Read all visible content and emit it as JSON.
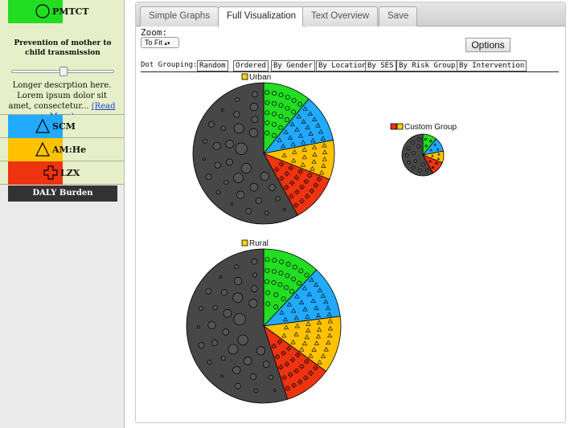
{
  "sidebar": {
    "interventions": [
      {
        "key": "pmtct",
        "label": "PMTCT",
        "color": "#22dd22",
        "icon": "circle-icon"
      },
      {
        "key": "scm",
        "label": "SCM",
        "color": "#22aaff",
        "icon": "triangle-icon"
      },
      {
        "key": "amhe",
        "label": "AM:He",
        "color": "#ffc200",
        "icon": "triangle-icon"
      },
      {
        "key": "lzx",
        "label": "LZX",
        "color": "#ee3311",
        "icon": "cross-icon"
      }
    ],
    "pmtct_title": "Prevention of mother to child transmission",
    "pmtct_long": "Longer descrption here. Lorem ipsum dolor sit amet, consectetur...",
    "read_more": "(Read More)",
    "daly_label": "DALY Burden",
    "slider_value": 0.5
  },
  "tabs": [
    {
      "label": "Simple Graphs",
      "active": false
    },
    {
      "label": "Full Visualization",
      "active": true
    },
    {
      "label": "Text Overview",
      "active": false
    },
    {
      "label": "Save",
      "active": false
    }
  ],
  "zoom": {
    "label": "Zoom:",
    "value": "To Fit"
  },
  "options_label": "Options",
  "grouping": {
    "label": "Dot Grouping:",
    "options": [
      "Random",
      "Ordered",
      "By Gender",
      "By Location",
      "By SES",
      "By Risk Group",
      "By Intervention"
    ],
    "selected": "By Location"
  },
  "chart_data": {
    "type": "pie",
    "groups": [
      {
        "name": "Urban",
        "size": "large",
        "segments": [
          {
            "intervention": "PMTCT",
            "value": 11
          },
          {
            "intervention": "SCM",
            "value": 11
          },
          {
            "intervention": "AM:He",
            "value": 9
          },
          {
            "intervention": "LZX",
            "value": 11
          },
          {
            "intervention": "DALY Burden",
            "value": 58
          }
        ]
      },
      {
        "name": "Custom Group",
        "size": "small",
        "segments": [
          {
            "intervention": "PMTCT",
            "value": 11
          },
          {
            "intervention": "SCM",
            "value": 11
          },
          {
            "intervention": "AM:He",
            "value": 9
          },
          {
            "intervention": "LZX",
            "value": 11
          },
          {
            "intervention": "DALY Burden",
            "value": 58
          }
        ]
      },
      {
        "name": "Rural",
        "size": "large",
        "segments": [
          {
            "intervention": "PMTCT",
            "value": 12
          },
          {
            "intervention": "SCM",
            "value": 11
          },
          {
            "intervention": "AM:He",
            "value": 12
          },
          {
            "intervention": "LZX",
            "value": 10
          },
          {
            "intervention": "DALY Burden",
            "value": 55
          }
        ]
      }
    ],
    "colors": {
      "PMTCT": "#22dd22",
      "SCM": "#22aaff",
      "AM:He": "#ffc200",
      "LZX": "#ee3311",
      "DALY Burden": "#474747"
    }
  }
}
